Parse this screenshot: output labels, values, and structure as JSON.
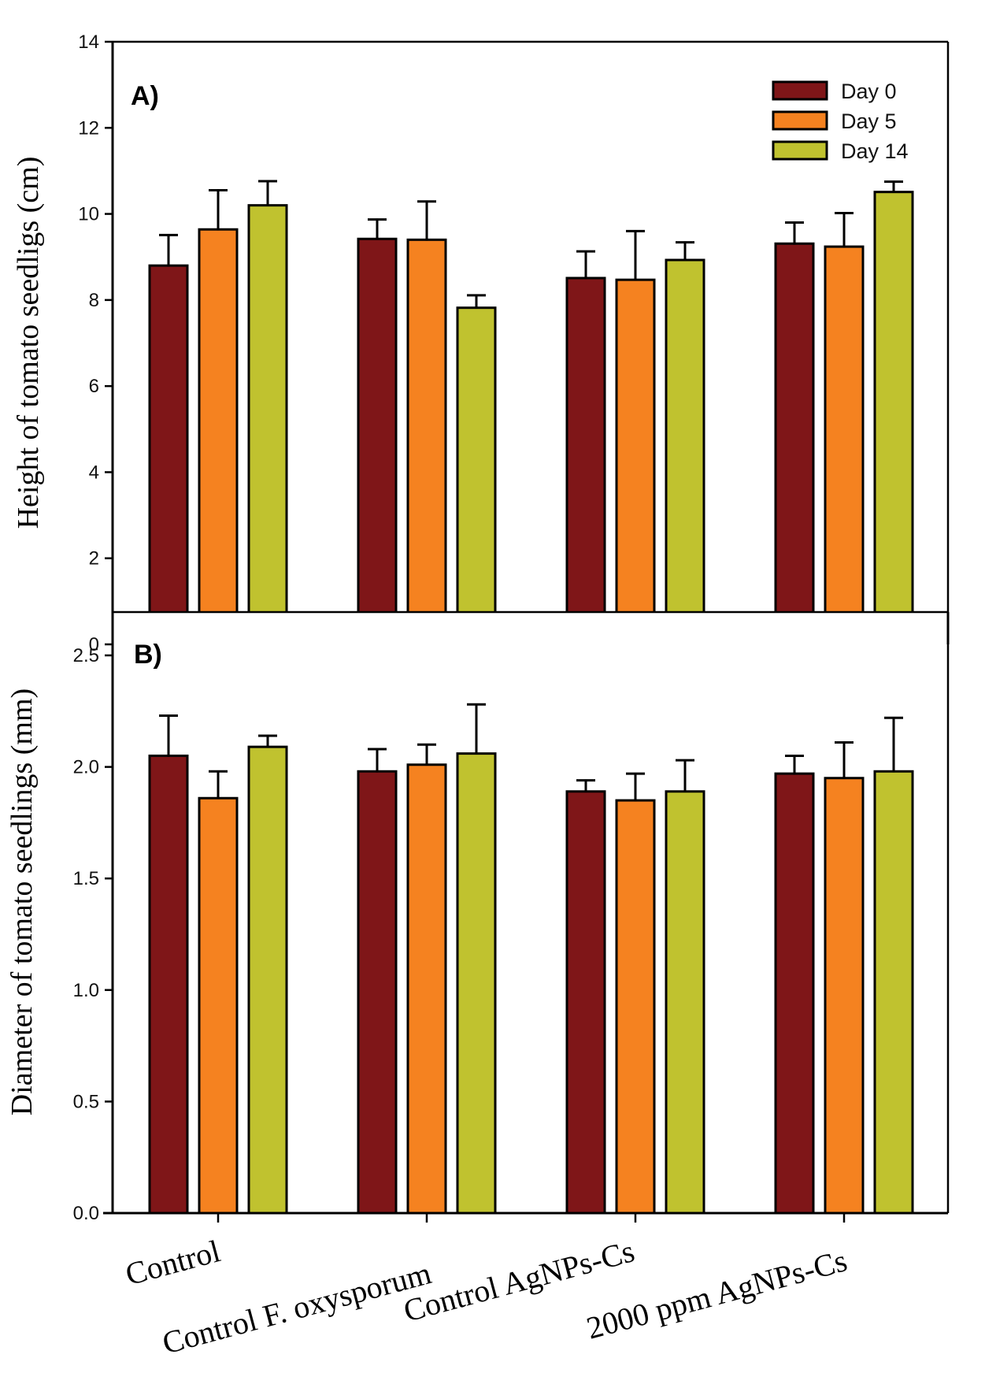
{
  "chart_data": [
    {
      "type": "bar",
      "panel_label": "A)",
      "title": "",
      "xlabel": "",
      "ylabel": "Height of tomato seedligs (cm)",
      "ylim": [
        0,
        14
      ],
      "yticks": [
        0,
        2,
        4,
        6,
        8,
        10,
        12,
        14
      ],
      "ytick_labels": [
        "0",
        "2",
        "4",
        "6",
        "8",
        "10",
        "12",
        "14"
      ],
      "grid": false,
      "legend_position": "top-right",
      "categories": [
        "Control",
        "Control  F. oxysporum",
        "Control AgNPs-Cs",
        "2000 ppm AgNPs-Cs"
      ],
      "series": [
        {
          "name": "Day 0",
          "color": "#7f1618",
          "values": [
            8.8,
            9.42,
            8.51,
            9.31
          ],
          "error": [
            0.71,
            0.45,
            0.62,
            0.49
          ]
        },
        {
          "name": "Day 5",
          "color": "#f58220",
          "values": [
            9.64,
            9.4,
            8.47,
            9.24
          ],
          "error": [
            0.91,
            0.89,
            1.13,
            0.78
          ]
        },
        {
          "name": "Day 14",
          "color": "#c0c22f",
          "values": [
            10.2,
            7.82,
            8.93,
            10.51
          ],
          "error": [
            0.56,
            0.29,
            0.41,
            0.24
          ]
        }
      ]
    },
    {
      "type": "bar",
      "panel_label": "B)",
      "title": "",
      "xlabel": "",
      "ylabel": "Diameter of tomato seedlings (mm)",
      "ylim": [
        0,
        2.5
      ],
      "yticks": [
        0,
        0.5,
        1.0,
        1.5,
        2.0,
        2.5
      ],
      "ytick_labels": [
        "0.0",
        "0.5",
        "1.0",
        "1.5",
        "2.0",
        "2.5"
      ],
      "grid": false,
      "categories": [
        "Control",
        "Control  F. oxysporum",
        "Control AgNPs-Cs",
        "2000 ppm AgNPs-Cs"
      ],
      "series": [
        {
          "name": "Day 0",
          "color": "#7f1618",
          "values": [
            2.05,
            1.98,
            1.89,
            1.97
          ],
          "error": [
            0.18,
            0.1,
            0.05,
            0.08
          ]
        },
        {
          "name": "Day 5",
          "color": "#f58220",
          "values": [
            1.86,
            2.01,
            1.85,
            1.95
          ],
          "error": [
            0.12,
            0.09,
            0.12,
            0.16
          ]
        },
        {
          "name": "Day 14",
          "color": "#c0c22f",
          "values": [
            2.09,
            2.06,
            1.89,
            1.98
          ],
          "error": [
            0.05,
            0.22,
            0.14,
            0.24
          ]
        }
      ]
    }
  ],
  "x_category_labels": [
    "Control",
    "Control  F. oxysporum",
    "Control AgNPs-Cs",
    "2000 ppm AgNPs-Cs"
  ],
  "legend": [
    {
      "label": "Day 0",
      "color": "#7f1618"
    },
    {
      "label": "Day 5",
      "color": "#f58220"
    },
    {
      "label": "Day 14",
      "color": "#c0c22f"
    }
  ]
}
